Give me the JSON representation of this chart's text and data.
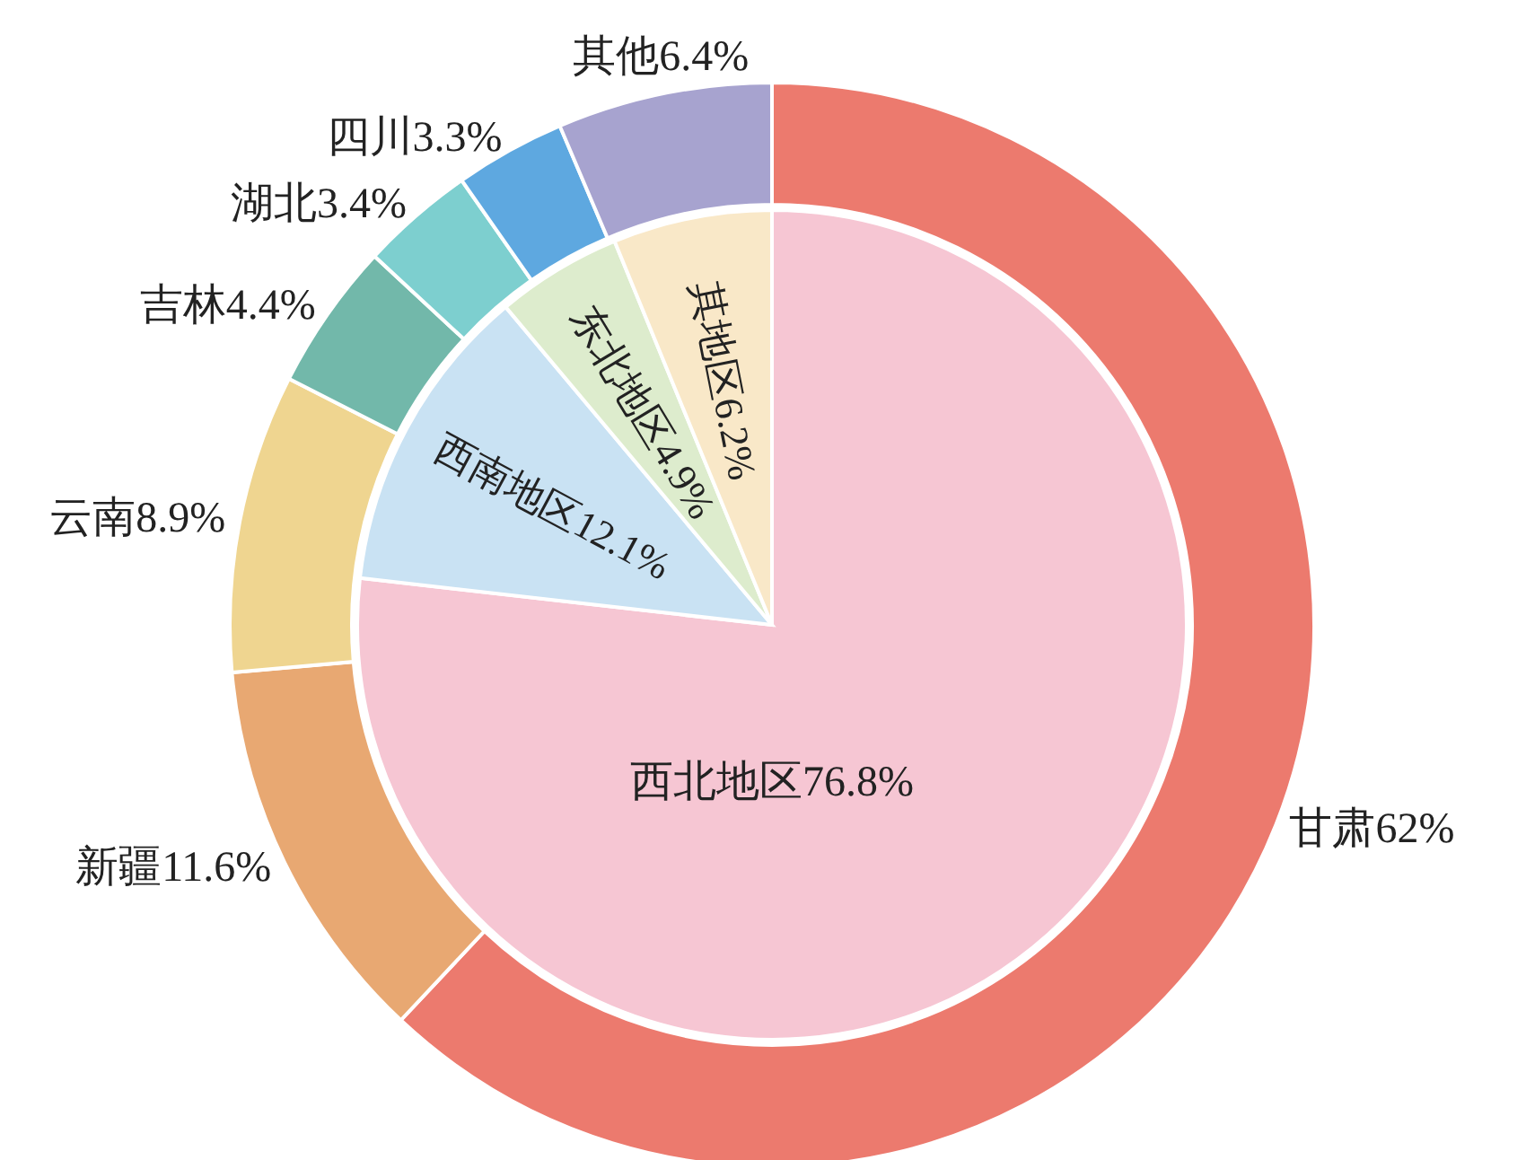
{
  "chart_data": [
    {
      "type": "pie",
      "categories": [
        "西北地区",
        "西南地区",
        "东北地区",
        "其地区"
      ],
      "values": [
        76.8,
        12.1,
        4.9,
        6.2
      ],
      "value_labels": [
        "76.8%",
        "12.1%",
        "4.9%",
        "6.2%"
      ],
      "colors": [
        "#f6c6d3",
        "#c9e2f3",
        "#ddeccd",
        "#f9e8c8"
      ],
      "legend": false
    },
    {
      "type": "donut",
      "categories": [
        "甘肃",
        "新疆",
        "云南",
        "吉林",
        "湖北",
        "四川",
        "其他"
      ],
      "values": [
        62,
        11.6,
        8.9,
        4.4,
        3.4,
        3.3,
        6.4
      ],
      "value_labels": [
        "62%",
        "11.6%",
        "8.9%",
        "4.4%",
        "3.4%",
        "3.3%",
        "6.4%"
      ],
      "colors": [
        "#ec7a6e",
        "#e8a872",
        "#efd590",
        "#72b8aa",
        "#7dcfcf",
        "#5ea8e0",
        "#a7a3cf"
      ],
      "legend": false
    }
  ]
}
